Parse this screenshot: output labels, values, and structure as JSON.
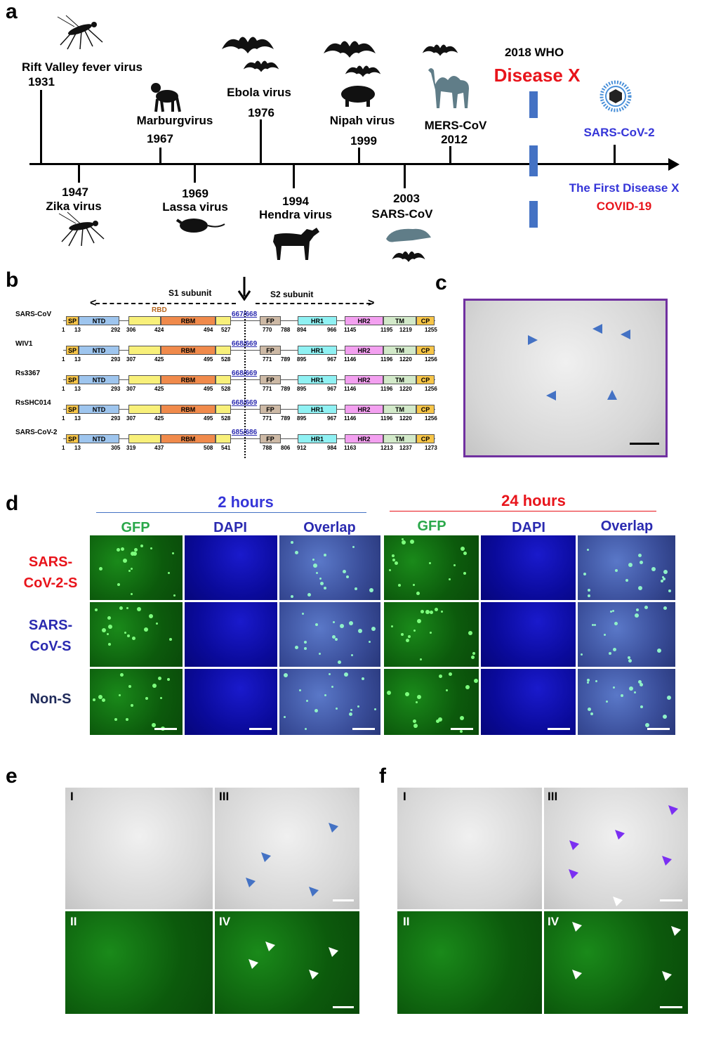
{
  "panels": {
    "a": "a",
    "b": "b",
    "c": "c",
    "d": "d",
    "e": "e",
    "f": "f"
  },
  "timeline": {
    "above": [
      {
        "name": "Rift Valley fever virus",
        "year": "1931"
      },
      {
        "name": "Marburgvirus",
        "year": "1967"
      },
      {
        "name": "Ebola virus",
        "year": "1976"
      },
      {
        "name": "Nipah virus",
        "year": "1999"
      },
      {
        "name": "MERS-CoV",
        "year": "2012"
      },
      {
        "name": "SARS-CoV-2"
      }
    ],
    "below": [
      {
        "year": "1947",
        "name": "Zika virus"
      },
      {
        "year": "1969",
        "name": "Lassa virus"
      },
      {
        "year": "1994",
        "name": "Hendra virus"
      },
      {
        "year": "2003",
        "name": "SARS-CoV"
      }
    ],
    "who_label": "2018 WHO",
    "disease_x": "Disease X",
    "first_disease_x": "The First Disease X",
    "covid": "COVID-19",
    "colors": {
      "red": "#e8141b",
      "blue": "#3535d8",
      "bar": "#4472c4"
    }
  },
  "spike": {
    "s1_label": "S1 subunit",
    "s2_label": "S2 subunit",
    "rbd_label": "RBD",
    "domains": {
      "sp": "SP",
      "ntd": "NTD",
      "rbm": "RBM",
      "fp": "FP",
      "hr1": "HR1",
      "hr2": "HR2",
      "tm": "TM",
      "cp": "CP"
    },
    "rows": [
      {
        "name": "SARS-CoV",
        "cleavage": "667/668",
        "nums": [
          "1",
          "13",
          "292",
          "306",
          "424",
          "494",
          "527",
          "770",
          "788",
          "894",
          "966",
          "1145",
          "1195",
          "1219",
          "1255"
        ]
      },
      {
        "name": "WIV1",
        "cleavage": "668/669",
        "nums": [
          "1",
          "13",
          "293",
          "307",
          "425",
          "495",
          "528",
          "771",
          "789",
          "895",
          "967",
          "1146",
          "1196",
          "1220",
          "1256"
        ]
      },
      {
        "name": "Rs3367",
        "cleavage": "668/669",
        "nums": [
          "1",
          "13",
          "293",
          "307",
          "425",
          "495",
          "528",
          "771",
          "789",
          "895",
          "967",
          "1146",
          "1196",
          "1220",
          "1256"
        ]
      },
      {
        "name": "RsSHC014",
        "cleavage": "668/669",
        "nums": [
          "1",
          "13",
          "293",
          "307",
          "425",
          "495",
          "528",
          "771",
          "789",
          "895",
          "967",
          "1146",
          "1196",
          "1220",
          "1256"
        ]
      },
      {
        "name": "SARS-CoV-2",
        "cleavage": "685/686",
        "nums": [
          "1",
          "13",
          "305",
          "319",
          "437",
          "508",
          "541",
          "788",
          "806",
          "912",
          "984",
          "1163",
          "1213",
          "1237",
          "1273"
        ]
      }
    ]
  },
  "microscopy": {
    "time_2h": "2 hours",
    "time_24h": "24 hours",
    "columns": [
      "GFP",
      "DAPI",
      "Overlap"
    ],
    "rows": [
      "SARS-\nCoV-2-S",
      "SARS-\nCoV-S",
      "Non-S"
    ],
    "roman": [
      "I",
      "II",
      "III",
      "IV"
    ]
  }
}
